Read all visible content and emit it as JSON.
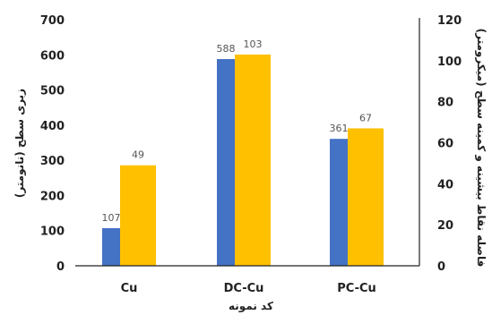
{
  "chart_data": {
    "type": "bar",
    "categories": [
      "Cu",
      "DC-Cu",
      "PC-Cu"
    ],
    "series": [
      {
        "name": "",
        "axis": "left",
        "color": "#4472C4",
        "values": [
          107,
          588,
          361
        ]
      },
      {
        "name": "",
        "axis": "right",
        "color": "#FFC000",
        "values": [
          49,
          103,
          67
        ]
      }
    ],
    "xlabel": "کد نمونه",
    "ylabel_left": "زبری سطح (نانومتر)",
    "ylabel_right": "فاصله نقاط بیشینه و کمینه سطح (میکرومتر)",
    "ylim_left": [
      0,
      700
    ],
    "ylim_right": [
      0,
      120
    ],
    "yticks_left": [
      "0",
      "100",
      "200",
      "300",
      "400",
      "500",
      "600",
      "700"
    ],
    "yticks_right": [
      "0",
      "20",
      "40",
      "60",
      "80",
      "100",
      "120"
    ],
    "data_labels_left": [
      "107",
      "588",
      "361"
    ],
    "data_labels_right": [
      "49",
      "103",
      "67"
    ],
    "grid": false,
    "legend": "none"
  }
}
